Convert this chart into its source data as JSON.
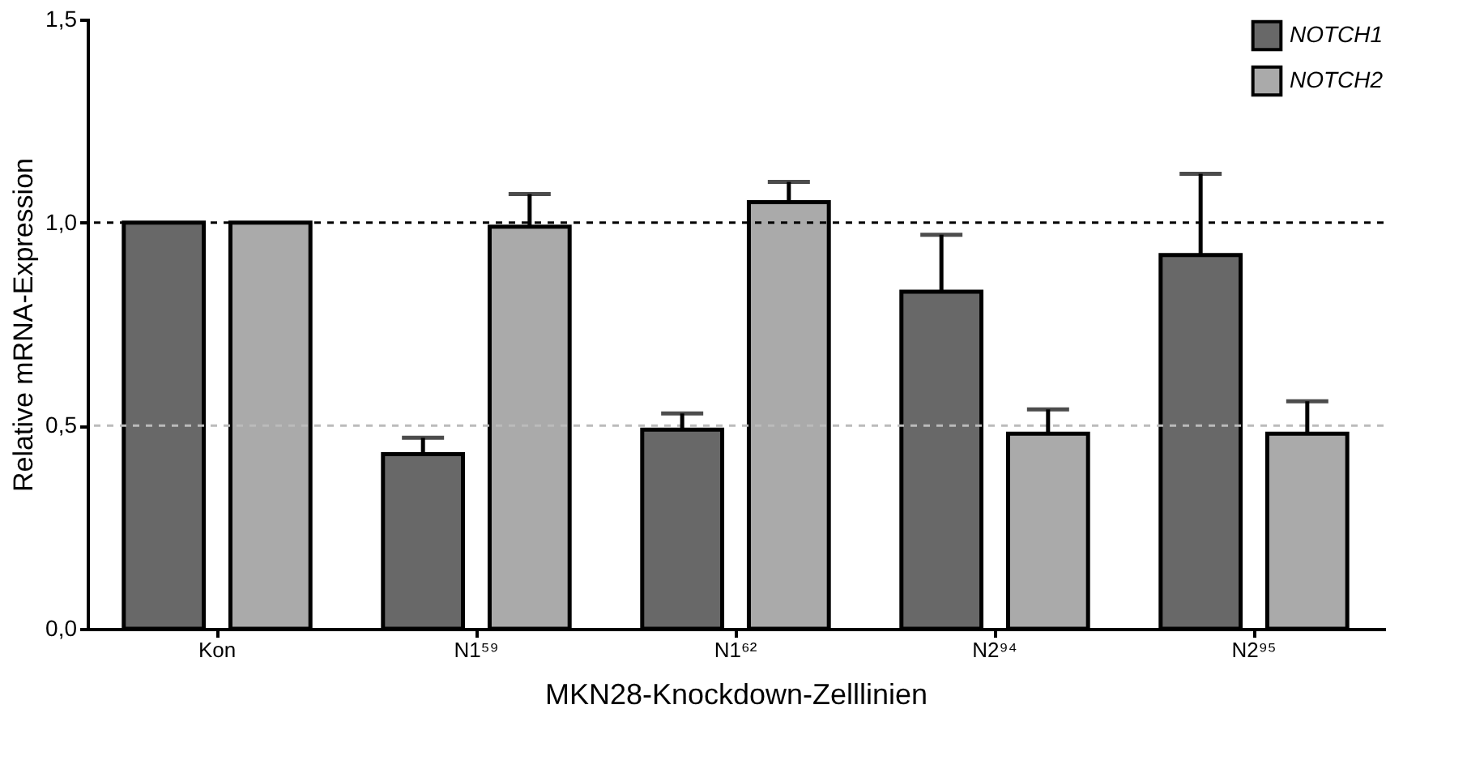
{
  "chart_data": {
    "type": "bar",
    "xlabel": "MKN28-Knockdown-Zelllinien",
    "ylabel": "Relative mRNA-Expression",
    "categories": [
      "Kon",
      "N1⁵⁹",
      "N1⁶²",
      "N2⁹⁴",
      "N2⁹⁵"
    ],
    "series": [
      {
        "name": "NOTCH1",
        "color": "#686868",
        "values": [
          1.0,
          0.43,
          0.49,
          0.83,
          0.92
        ],
        "errors": [
          null,
          [
            0.43,
            0.47
          ],
          [
            0.49,
            0.53
          ],
          [
            0.83,
            0.97
          ],
          [
            0.92,
            1.12
          ]
        ]
      },
      {
        "name": "NOTCH2",
        "color": "#aaaaaa",
        "values": [
          1.0,
          0.99,
          1.05,
          0.48,
          0.48
        ],
        "errors": [
          null,
          [
            0.99,
            1.07
          ],
          [
            1.05,
            1.1
          ],
          [
            0.48,
            0.54
          ],
          [
            0.48,
            0.56
          ]
        ]
      }
    ],
    "ylim": [
      0,
      1.5
    ],
    "yticks": [
      {
        "value": 0,
        "label": "0,0"
      },
      {
        "value": 0.5,
        "label": "0,5"
      },
      {
        "value": 1.0,
        "label": "1,0"
      },
      {
        "value": 1.5,
        "label": "1,5"
      }
    ],
    "ref_lines": [
      {
        "axis": "y",
        "value": 1.0,
        "color": "#000000",
        "line_style": "dashed"
      },
      {
        "axis": "y",
        "value": 0.5,
        "color": "#bbbbbb",
        "line_style": "dashed"
      }
    ],
    "grid": false,
    "legend": "top right"
  }
}
